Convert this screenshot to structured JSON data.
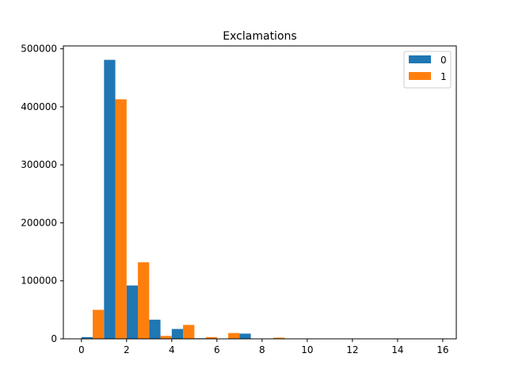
{
  "chart_data": {
    "type": "bar",
    "title": "Exclamations",
    "xlabel": "",
    "ylabel": "",
    "xlim": [
      -0.8,
      16.6
    ],
    "ylim": [
      0,
      505000
    ],
    "x_ticks": [
      0,
      2,
      4,
      6,
      8,
      10,
      12,
      14,
      16
    ],
    "y_ticks": [
      0,
      100000,
      200000,
      300000,
      400000,
      500000
    ],
    "bin_edges": [
      0,
      1,
      2,
      3,
      4,
      5,
      6,
      7,
      8,
      9,
      10,
      11,
      12,
      13,
      14,
      15,
      16
    ],
    "grid": false,
    "legend_position": "top-right",
    "series": [
      {
        "name": "0",
        "color": "#1f77b4",
        "values": [
          3000,
          481000,
          92000,
          33000,
          17000,
          1000,
          500,
          9000,
          300,
          100,
          50,
          30,
          20,
          10,
          5,
          5
        ]
      },
      {
        "name": "1",
        "color": "#ff7f0e",
        "values": [
          50000,
          413000,
          132000,
          5000,
          24000,
          3000,
          10000,
          200,
          2000,
          100,
          50,
          30,
          20,
          10,
          5,
          5
        ]
      }
    ]
  }
}
